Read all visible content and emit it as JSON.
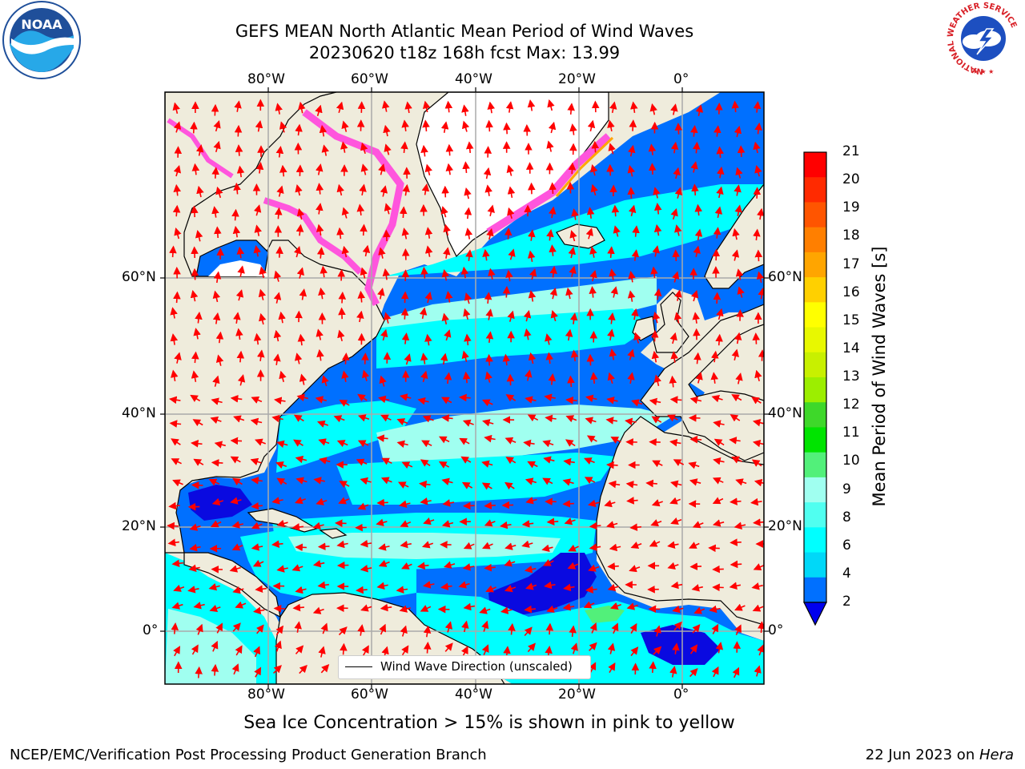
{
  "title": {
    "line1": "GEFS MEAN North Atlantic Mean Period of Wind Waves",
    "line2": "20230620 t18z 168h fcst   Max: 13.99"
  },
  "map": {
    "lon_labels": [
      "80°W",
      "60°W",
      "40°W",
      "20°W",
      "0°"
    ],
    "lat_labels": [
      "60°N",
      "40°N",
      "20°N",
      "0°"
    ],
    "lon_range": [
      -100,
      15
    ],
    "lat_range": [
      -8,
      80
    ],
    "legend_label": "Wind Wave Direction (unscaled)"
  },
  "colorbar": {
    "title": "Mean Period of Wind Waves [s]",
    "ticks": [
      "21",
      "20",
      "19",
      "18",
      "17",
      "16",
      "15",
      "14",
      "13",
      "12",
      "11",
      "10",
      "9",
      "8",
      "6",
      "4",
      "2"
    ],
    "colors": [
      "#ff0000",
      "#ff2a00",
      "#ff5500",
      "#ff7f00",
      "#ffa500",
      "#ffd000",
      "#ffff00",
      "#e8f800",
      "#c8f000",
      "#9cee00",
      "#3ed82a",
      "#00e400",
      "#52f07a",
      "#a0fff0",
      "#50fff0",
      "#00ffff",
      "#00d8f8",
      "#0070ff"
    ],
    "extend_color": "#0000ee"
  },
  "caption": "Sea Ice Concentration > 15% is shown in pink to yellow",
  "footer": {
    "left": "NCEP/EMC/Verification Post Processing Product Generation Branch",
    "right_date": "22 Jun 2023 on ",
    "right_host": "Hera"
  },
  "logos": {
    "noaa": "NOAA",
    "nws_ring": "NATIONAL WEATHER SERVICE"
  },
  "colors": {
    "land": "#efecdc",
    "ocean_low": "#0070ff",
    "ocean_mid": "#00ffff",
    "ocean_high": "#a0fff0",
    "ocean_min": "#0a0ae0",
    "arrows": "#ff0000",
    "ice": "#ff55dd",
    "gridline": "#aaaaaa"
  }
}
